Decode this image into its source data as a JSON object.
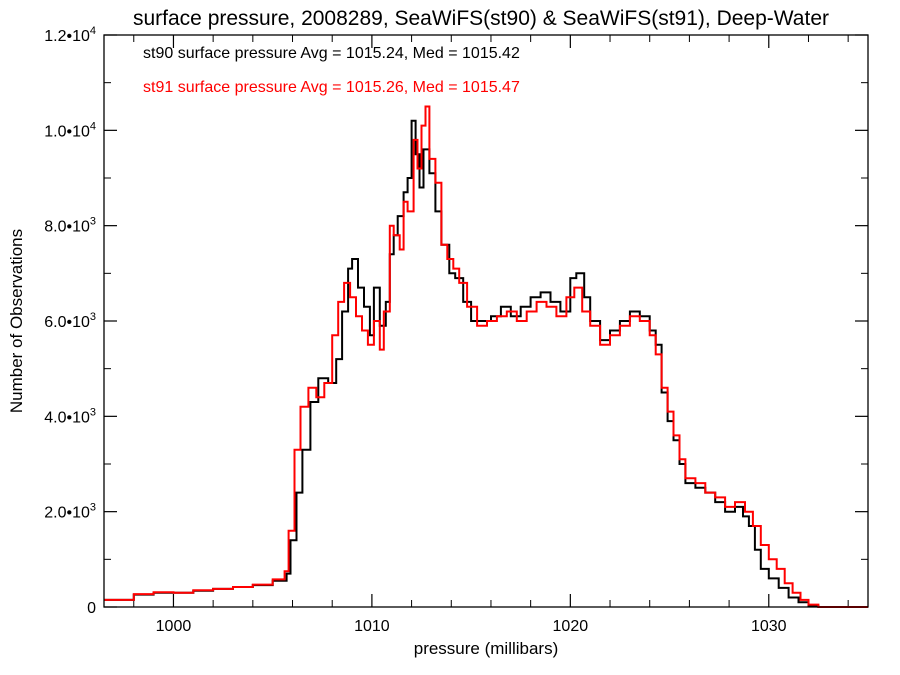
{
  "chart_data": {
    "type": "line",
    "title": "surface pressure, 2008289, SeaWiFS(st90) & SeaWiFS(st91), Deep-Water",
    "xlabel": "pressure (millibars)",
    "ylabel": "Number of Observations",
    "xlim": [
      996.5,
      1035
    ],
    "ylim": [
      0,
      12000
    ],
    "x_ticks": [
      1000,
      1010,
      1020,
      1030
    ],
    "y_ticks": [
      {
        "value": 0,
        "label": "0"
      },
      {
        "value": 2000,
        "label": "2.0•10",
        "exp": "3"
      },
      {
        "value": 4000,
        "label": "4.0•10",
        "exp": "3"
      },
      {
        "value": 6000,
        "label": "6.0•10",
        "exp": "3"
      },
      {
        "value": 8000,
        "label": "8.0•10",
        "exp": "3"
      },
      {
        "value": 10000,
        "label": "1.0•10",
        "exp": "4"
      },
      {
        "value": 12000,
        "label": "1.2•10",
        "exp": "4"
      }
    ],
    "legend_position": "top-left",
    "series": [
      {
        "name": "st90",
        "legend": "st90 surface pressure Avg = 1015.24, Med = 1015.42",
        "color": "#000000",
        "points": [
          [
            996.5,
            150
          ],
          [
            998,
            260
          ],
          [
            999,
            300
          ],
          [
            1000,
            300
          ],
          [
            1001,
            340
          ],
          [
            1002,
            380
          ],
          [
            1003,
            420
          ],
          [
            1004,
            460
          ],
          [
            1005,
            550
          ],
          [
            1005.7,
            700
          ],
          [
            1005.9,
            1400
          ],
          [
            1006.2,
            2400
          ],
          [
            1006.5,
            3300
          ],
          [
            1006.9,
            4300
          ],
          [
            1007.3,
            4800
          ],
          [
            1007.8,
            4700
          ],
          [
            1008.2,
            5200
          ],
          [
            1008.5,
            6200
          ],
          [
            1008.8,
            7100
          ],
          [
            1009,
            7300
          ],
          [
            1009.3,
            6700
          ],
          [
            1009.6,
            6300
          ],
          [
            1009.9,
            5700
          ],
          [
            1010.1,
            6700
          ],
          [
            1010.4,
            5900
          ],
          [
            1010.7,
            6400
          ],
          [
            1010.9,
            7400
          ],
          [
            1011.1,
            7800
          ],
          [
            1011.3,
            8200
          ],
          [
            1011.6,
            8700
          ],
          [
            1011.8,
            9000
          ],
          [
            1012,
            10200
          ],
          [
            1012.2,
            9500
          ],
          [
            1012.4,
            8800
          ],
          [
            1012.6,
            9600
          ],
          [
            1012.9,
            9100
          ],
          [
            1013.2,
            8300
          ],
          [
            1013.5,
            7600
          ],
          [
            1013.9,
            7000
          ],
          [
            1014.2,
            6900
          ],
          [
            1014.6,
            6400
          ],
          [
            1015,
            6000
          ],
          [
            1015.5,
            6000
          ],
          [
            1016,
            6100
          ],
          [
            1016.5,
            6300
          ],
          [
            1017,
            6100
          ],
          [
            1017.5,
            6300
          ],
          [
            1018,
            6500
          ],
          [
            1018.5,
            6600
          ],
          [
            1019,
            6400
          ],
          [
            1019.5,
            6200
          ],
          [
            1020,
            6900
          ],
          [
            1020.3,
            7000
          ],
          [
            1020.7,
            6500
          ],
          [
            1021,
            6000
          ],
          [
            1021.5,
            5600
          ],
          [
            1022,
            5800
          ],
          [
            1022.5,
            6000
          ],
          [
            1023,
            6200
          ],
          [
            1023.5,
            6100
          ],
          [
            1024,
            5800
          ],
          [
            1024.3,
            5500
          ],
          [
            1024.6,
            4500
          ],
          [
            1024.9,
            3900
          ],
          [
            1025.2,
            3500
          ],
          [
            1025.5,
            3000
          ],
          [
            1025.8,
            2600
          ],
          [
            1026.3,
            2500
          ],
          [
            1026.8,
            2400
          ],
          [
            1027.3,
            2200
          ],
          [
            1027.8,
            2000
          ],
          [
            1028.3,
            2100
          ],
          [
            1028.7,
            1900
          ],
          [
            1029,
            1700
          ],
          [
            1029.3,
            1200
          ],
          [
            1029.6,
            800
          ],
          [
            1030,
            600
          ],
          [
            1030.5,
            400
          ],
          [
            1031,
            200
          ],
          [
            1031.5,
            100
          ],
          [
            1032,
            20
          ],
          [
            1032.5,
            0
          ],
          [
            1035,
            0
          ]
        ]
      },
      {
        "name": "st91",
        "legend": "st91 surface pressure Avg = 1015.26, Med = 1015.47",
        "color": "#ff0000",
        "points": [
          [
            996.5,
            150
          ],
          [
            998,
            270
          ],
          [
            999,
            310
          ],
          [
            1000,
            300
          ],
          [
            1001,
            350
          ],
          [
            1002,
            380
          ],
          [
            1003,
            420
          ],
          [
            1004,
            470
          ],
          [
            1005,
            580
          ],
          [
            1005.6,
            750
          ],
          [
            1005.8,
            1600
          ],
          [
            1006.1,
            3300
          ],
          [
            1006.4,
            4200
          ],
          [
            1006.8,
            4600
          ],
          [
            1007.2,
            4400
          ],
          [
            1007.6,
            4700
          ],
          [
            1008,
            5700
          ],
          [
            1008.3,
            6400
          ],
          [
            1008.6,
            6800
          ],
          [
            1008.9,
            6500
          ],
          [
            1009.2,
            6100
          ],
          [
            1009.5,
            5800
          ],
          [
            1009.8,
            5500
          ],
          [
            1010.1,
            6000
          ],
          [
            1010.4,
            5400
          ],
          [
            1010.6,
            6200
          ],
          [
            1010.9,
            8000
          ],
          [
            1011.1,
            7800
          ],
          [
            1011.4,
            7500
          ],
          [
            1011.6,
            8500
          ],
          [
            1011.8,
            8300
          ],
          [
            1012.1,
            9800
          ],
          [
            1012.3,
            9200
          ],
          [
            1012.5,
            10100
          ],
          [
            1012.7,
            10500
          ],
          [
            1012.9,
            9400
          ],
          [
            1013.2,
            8900
          ],
          [
            1013.5,
            7600
          ],
          [
            1013.8,
            7300
          ],
          [
            1014.1,
            7100
          ],
          [
            1014.4,
            6800
          ],
          [
            1014.8,
            6300
          ],
          [
            1015.3,
            5900
          ],
          [
            1015.8,
            6000
          ],
          [
            1016.3,
            6100
          ],
          [
            1016.8,
            6200
          ],
          [
            1017.3,
            6000
          ],
          [
            1017.8,
            6200
          ],
          [
            1018.3,
            6400
          ],
          [
            1018.8,
            6300
          ],
          [
            1019.3,
            6100
          ],
          [
            1019.8,
            6500
          ],
          [
            1020.2,
            6700
          ],
          [
            1020.6,
            6200
          ],
          [
            1021,
            5900
          ],
          [
            1021.5,
            5500
          ],
          [
            1022,
            5700
          ],
          [
            1022.5,
            5900
          ],
          [
            1023,
            6100
          ],
          [
            1023.5,
            6000
          ],
          [
            1024,
            5700
          ],
          [
            1024.3,
            5300
          ],
          [
            1024.6,
            4600
          ],
          [
            1024.9,
            4100
          ],
          [
            1025.2,
            3600
          ],
          [
            1025.5,
            3100
          ],
          [
            1025.8,
            2700
          ],
          [
            1026.3,
            2600
          ],
          [
            1026.8,
            2400
          ],
          [
            1027.3,
            2300
          ],
          [
            1027.8,
            2100
          ],
          [
            1028.3,
            2200
          ],
          [
            1028.8,
            2000
          ],
          [
            1029.2,
            1700
          ],
          [
            1029.6,
            1300
          ],
          [
            1030,
            1000
          ],
          [
            1030.4,
            800
          ],
          [
            1030.8,
            500
          ],
          [
            1031.2,
            300
          ],
          [
            1031.6,
            150
          ],
          [
            1032,
            50
          ],
          [
            1032.5,
            0
          ],
          [
            1035,
            0
          ]
        ]
      }
    ]
  }
}
